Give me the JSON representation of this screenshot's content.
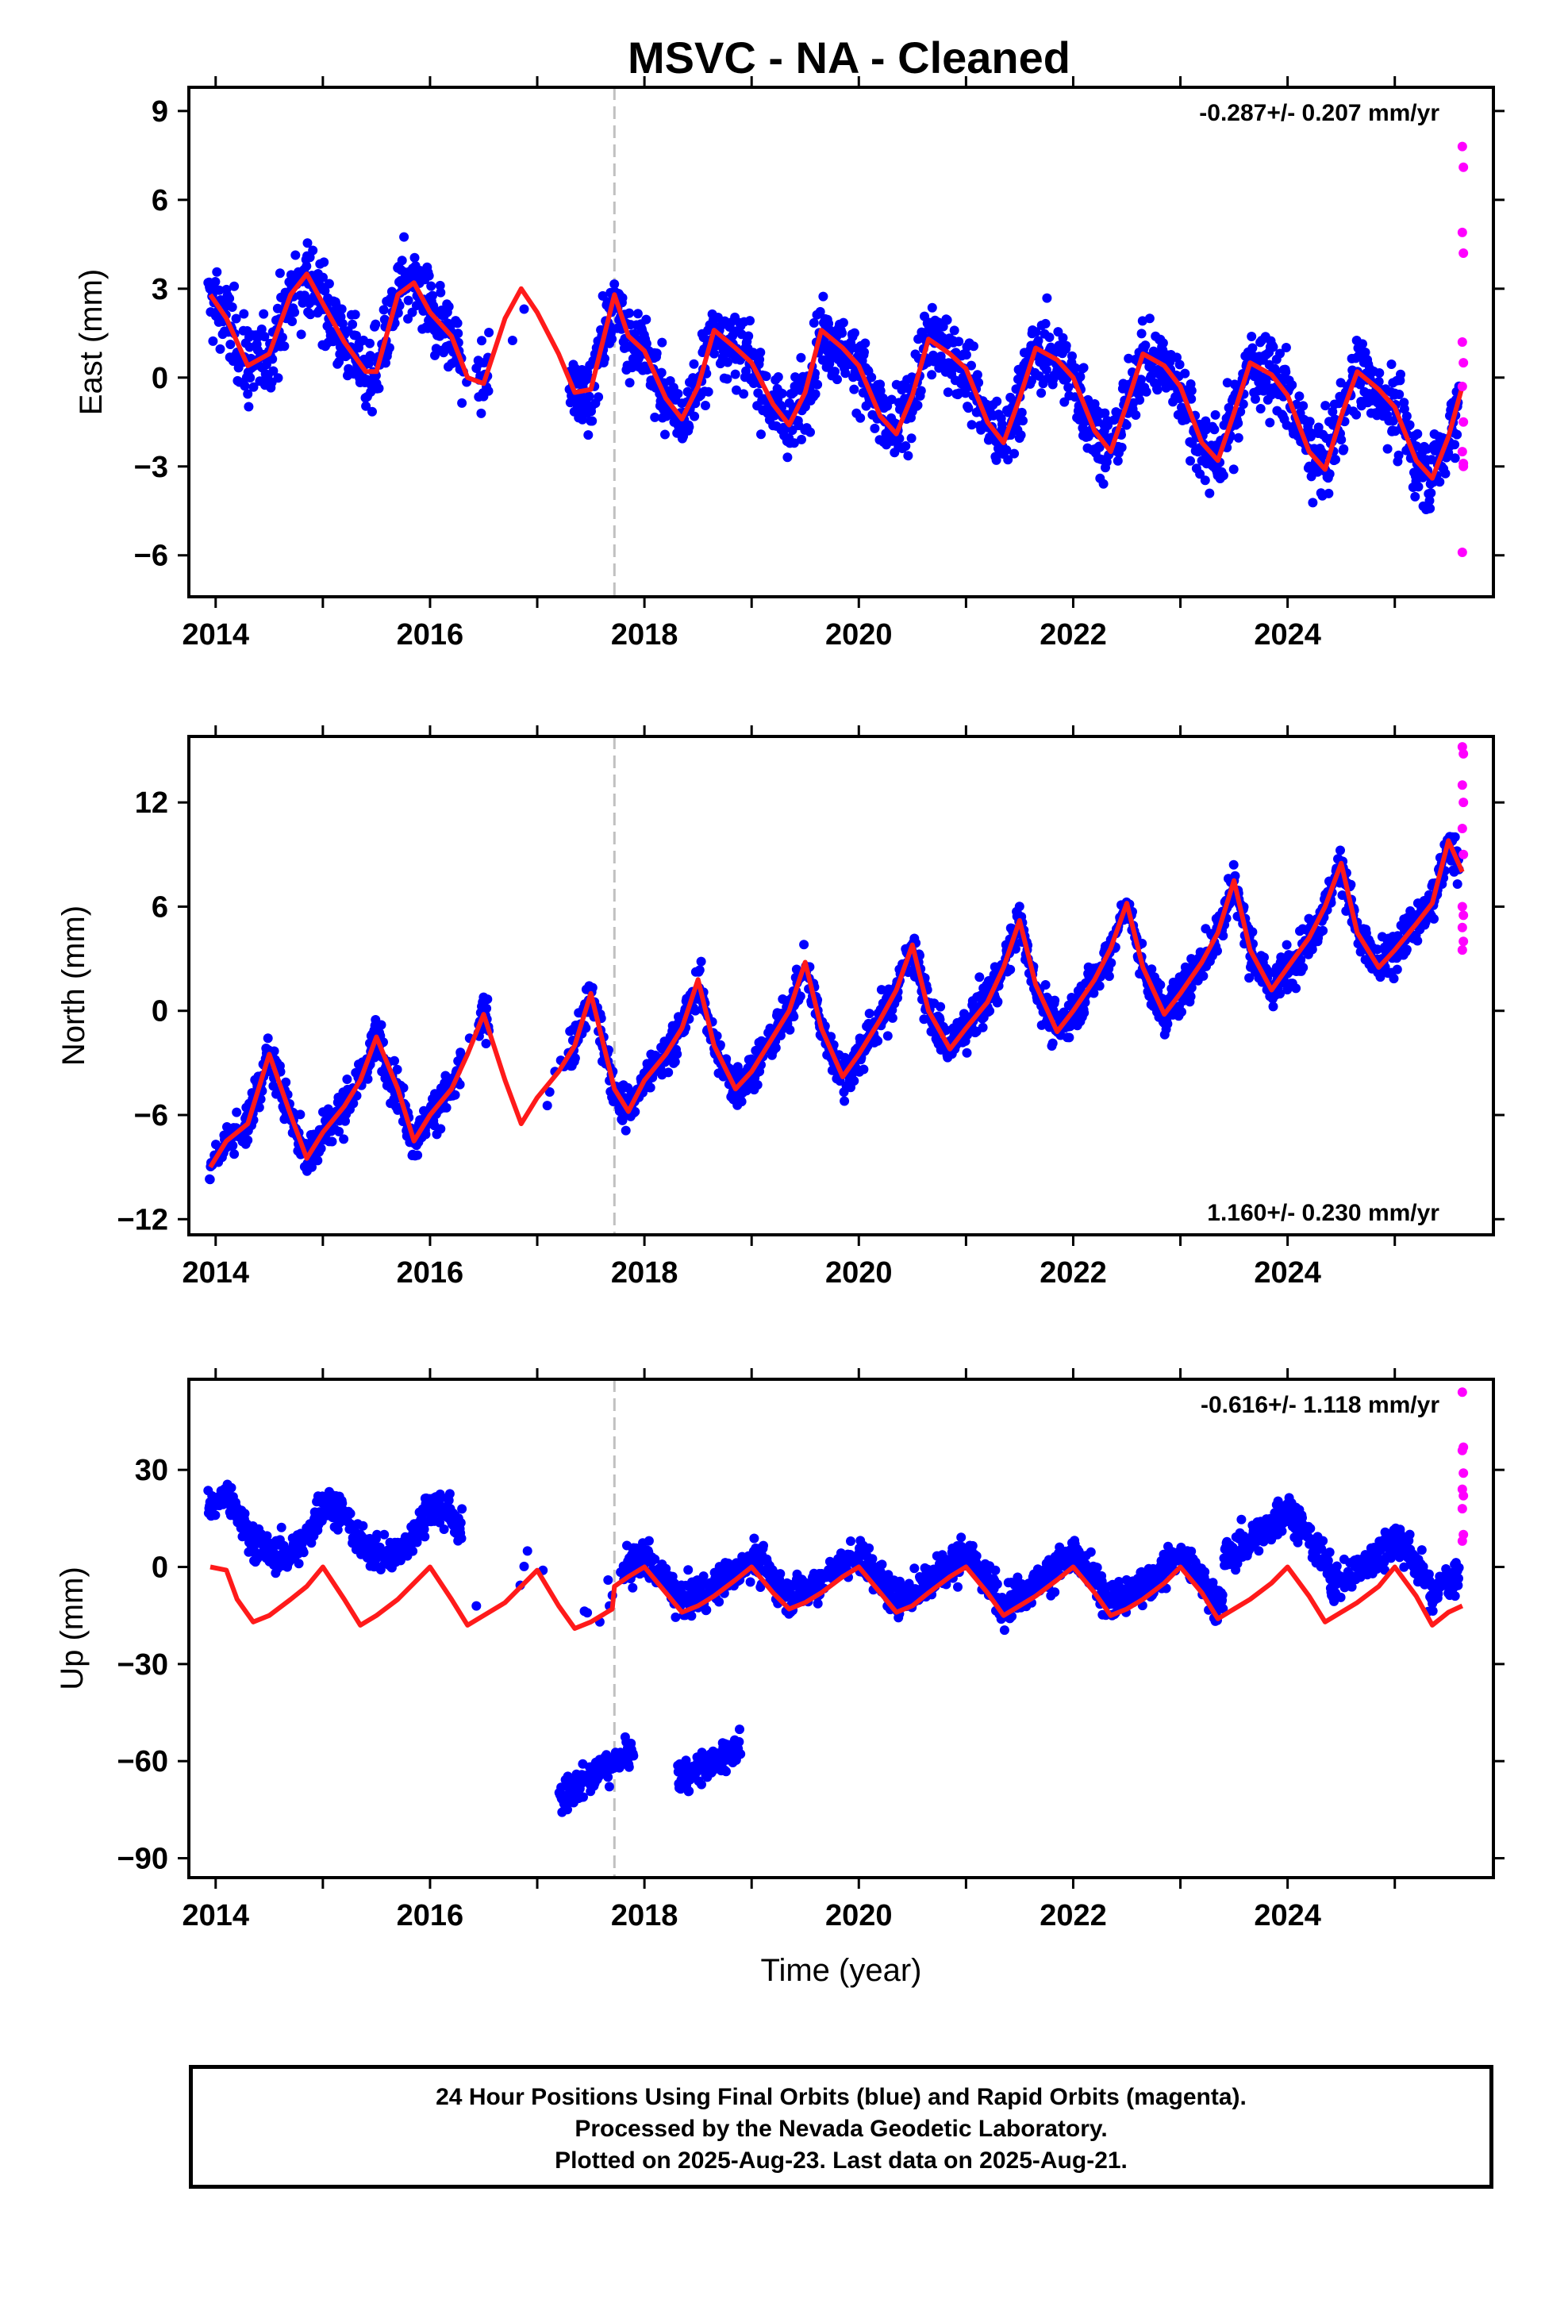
{
  "title": "MSVC  - NA - Cleaned",
  "x_label": "Time (year)",
  "colors": {
    "final": "#0000ff",
    "rapid": "#ff00ff",
    "model": "#ff1a1a",
    "event_line": "#c0c0c0"
  },
  "footer": {
    "line1": "24 Hour Positions Using Final Orbits (blue) and Rapid Orbits (magenta).",
    "line2": "Processed by the Nevada Geodetic Laboratory.",
    "line3": "Plotted on 2025-Aug-23. Last data on 2025-Aug-21."
  },
  "chart_data": [
    {
      "type": "scatter",
      "ylabel": "East (mm)",
      "rate": "-0.287+/- 0.207 mm/yr",
      "rate_position": "top-right",
      "xlim": [
        2013.75,
        2025.92
      ],
      "ylim": [
        -7.4,
        9.8
      ],
      "xticks": [
        2014,
        2016,
        2018,
        2020,
        2022,
        2024
      ],
      "yticks": [
        -6,
        -3,
        0,
        3,
        6,
        9
      ],
      "event_line_x": 2017.72,
      "series": [
        {
          "kind": "model",
          "x": [
            2013.95,
            2014.1,
            2014.3,
            2014.5,
            2014.7,
            2014.85,
            2015.0,
            2015.2,
            2015.4,
            2015.5,
            2015.7,
            2015.85,
            2016.0,
            2016.2,
            2016.35,
            2016.5,
            2016.7,
            2016.85,
            2017.0,
            2017.2,
            2017.35,
            2017.5,
            2017.72,
            2017.85,
            2018.0,
            2018.2,
            2018.35,
            2018.5,
            2018.65,
            2018.85,
            2019.0,
            2019.2,
            2019.35,
            2019.5,
            2019.65,
            2019.85,
            2020.0,
            2020.2,
            2020.35,
            2020.5,
            2020.65,
            2020.85,
            2021.0,
            2021.2,
            2021.35,
            2021.5,
            2021.65,
            2021.85,
            2022.0,
            2022.2,
            2022.35,
            2022.5,
            2022.65,
            2022.85,
            2023.0,
            2023.2,
            2023.35,
            2023.5,
            2023.65,
            2023.85,
            2024.0,
            2024.2,
            2024.35,
            2024.5,
            2024.65,
            2024.85,
            2025.0,
            2025.2,
            2025.35,
            2025.5,
            2025.63
          ],
          "y": [
            2.8,
            2.0,
            0.4,
            0.8,
            2.8,
            3.5,
            2.5,
            1.2,
            0.2,
            0.2,
            2.8,
            3.2,
            2.2,
            1.4,
            0.0,
            -0.2,
            2.0,
            3.0,
            2.2,
            0.8,
            -0.5,
            -0.4,
            2.8,
            1.4,
            0.9,
            -0.7,
            -1.4,
            -0.3,
            1.6,
            1.0,
            0.5,
            -0.9,
            -1.6,
            -0.5,
            1.6,
            1.0,
            0.4,
            -1.3,
            -1.9,
            -0.6,
            1.3,
            0.8,
            0.3,
            -1.5,
            -2.2,
            -0.7,
            1.0,
            0.6,
            0.0,
            -1.8,
            -2.5,
            -0.9,
            0.8,
            0.4,
            -0.3,
            -2.2,
            -2.8,
            -1.2,
            0.5,
            0.1,
            -0.6,
            -2.5,
            -3.1,
            -1.3,
            0.2,
            -0.4,
            -1.0,
            -2.8,
            -3.4,
            -2.0,
            -0.3
          ]
        },
        {
          "kind": "rapid",
          "x": [
            2025.63,
            2025.64,
            2025.63,
            2025.64,
            2025.63,
            2025.64,
            2025.63,
            2025.64,
            2025.63,
            2025.64,
            2025.63,
            2025.64
          ],
          "y": [
            7.8,
            7.1,
            4.9,
            4.2,
            1.2,
            0.5,
            -0.3,
            -1.5,
            -2.5,
            -3.0,
            -5.9,
            -2.9
          ]
        }
      ],
      "final_scatter_note_count": 0
    },
    {
      "type": "scatter",
      "ylabel": "North (mm)",
      "rate": "1.160+/- 0.230 mm/yr",
      "rate_position": "bottom-right",
      "xlim": [
        2013.75,
        2025.92
      ],
      "ylim": [
        -12.9,
        15.8
      ],
      "xticks": [
        2014,
        2016,
        2018,
        2020,
        2022,
        2024
      ],
      "yticks": [
        -12,
        -6,
        0,
        6,
        12
      ],
      "event_line_x": 2017.72,
      "series": [
        {
          "kind": "model",
          "x": [
            2013.95,
            2014.1,
            2014.3,
            2014.5,
            2014.7,
            2014.85,
            2015.0,
            2015.2,
            2015.35,
            2015.5,
            2015.7,
            2015.85,
            2016.0,
            2016.2,
            2016.35,
            2016.5,
            2016.7,
            2016.85,
            2017.0,
            2017.2,
            2017.35,
            2017.5,
            2017.72,
            2017.85,
            2018.0,
            2018.2,
            2018.35,
            2018.5,
            2018.65,
            2018.85,
            2019.0,
            2019.2,
            2019.35,
            2019.5,
            2019.65,
            2019.85,
            2020.0,
            2020.2,
            2020.35,
            2020.5,
            2020.65,
            2020.85,
            2021.0,
            2021.2,
            2021.35,
            2021.5,
            2021.65,
            2021.85,
            2022.0,
            2022.2,
            2022.35,
            2022.5,
            2022.65,
            2022.85,
            2023.0,
            2023.2,
            2023.35,
            2023.5,
            2023.65,
            2023.85,
            2024.0,
            2024.2,
            2024.35,
            2024.5,
            2024.65,
            2024.85,
            2025.0,
            2025.2,
            2025.35,
            2025.5,
            2025.63
          ],
          "y": [
            -9.0,
            -7.5,
            -6.5,
            -2.5,
            -6.0,
            -8.5,
            -7.0,
            -5.5,
            -4.0,
            -1.5,
            -4.5,
            -7.5,
            -6.0,
            -4.5,
            -2.5,
            -0.2,
            -4.0,
            -6.5,
            -5.0,
            -3.5,
            -2.0,
            1.0,
            -4.5,
            -5.8,
            -4.0,
            -2.5,
            -1.0,
            1.8,
            -2.0,
            -4.5,
            -3.5,
            -1.5,
            0.0,
            2.8,
            -1.0,
            -3.8,
            -2.5,
            -0.5,
            1.2,
            3.8,
            0.0,
            -2.2,
            -1.0,
            0.5,
            2.5,
            5.2,
            1.5,
            -1.2,
            0.0,
            1.8,
            3.6,
            6.2,
            2.5,
            -0.2,
            1.0,
            2.8,
            4.5,
            7.5,
            3.5,
            1.2,
            2.5,
            4.2,
            6.0,
            8.5,
            4.5,
            2.5,
            3.5,
            5.0,
            6.2,
            9.8,
            8.0
          ]
        },
        {
          "kind": "rapid",
          "x": [
            2025.63,
            2025.64,
            2025.63,
            2025.64,
            2025.63,
            2025.64,
            2025.63,
            2025.64,
            2025.63,
            2025.64,
            2025.63
          ],
          "y": [
            15.2,
            14.8,
            13.0,
            12.0,
            10.5,
            9.0,
            6.0,
            5.5,
            4.8,
            4.0,
            3.5
          ]
        }
      ]
    },
    {
      "type": "scatter",
      "ylabel": "Up (mm)",
      "rate": "-0.616+/- 1.118 mm/yr",
      "rate_position": "top-right",
      "xlim": [
        2013.75,
        2025.92
      ],
      "ylim": [
        -96,
        58
      ],
      "xticks": [
        2014,
        2016,
        2018,
        2020,
        2022,
        2024
      ],
      "yticks": [
        -90,
        -60,
        -30,
        0,
        30
      ],
      "event_line_x": 2017.72,
      "series": [
        {
          "kind": "model",
          "x": [
            2013.95,
            2014.1,
            2014.2,
            2014.35,
            2014.5,
            2014.7,
            2014.85,
            2015.0,
            2015.2,
            2015.35,
            2015.5,
            2015.7,
            2015.85,
            2016.0,
            2016.2,
            2016.35,
            2016.5,
            2016.7,
            2016.85,
            2017.0,
            2017.2,
            2017.35,
            2017.5,
            2017.7,
            2017.72,
            2017.85,
            2018.0,
            2018.2,
            2018.35,
            2018.5,
            2018.65,
            2018.85,
            2019.0,
            2019.2,
            2019.35,
            2019.5,
            2019.65,
            2019.85,
            2020.0,
            2020.2,
            2020.35,
            2020.5,
            2020.65,
            2020.85,
            2021.0,
            2021.2,
            2021.35,
            2021.5,
            2021.65,
            2021.85,
            2022.0,
            2022.2,
            2022.35,
            2022.5,
            2022.65,
            2022.85,
            2023.0,
            2023.2,
            2023.35,
            2023.5,
            2023.65,
            2023.85,
            2024.0,
            2024.2,
            2024.35,
            2024.5,
            2024.65,
            2024.85,
            2025.0,
            2025.2,
            2025.35,
            2025.5,
            2025.63
          ],
          "y": [
            0,
            -1,
            -10,
            -17,
            -15,
            -10,
            -6,
            0,
            -10,
            -18,
            -15,
            -10,
            -5,
            0,
            -10,
            -18,
            -15,
            -11,
            -6,
            -1,
            -12,
            -19,
            -17,
            -13,
            -6,
            -3,
            0,
            -8,
            -14,
            -12,
            -9,
            -4,
            0,
            -8,
            -13,
            -11,
            -8,
            -3,
            0,
            -8,
            -14,
            -12,
            -8,
            -3,
            0,
            -8,
            -15,
            -12,
            -9,
            -4,
            0,
            -8,
            -15,
            -13,
            -10,
            -5,
            0,
            -8,
            -16,
            -13,
            -10,
            -5,
            0,
            -9,
            -17,
            -14,
            -11,
            -6,
            0,
            -9,
            -18,
            -14,
            -12
          ]
        },
        {
          "kind": "rapid",
          "x": [
            2025.63,
            2025.64,
            2025.63,
            2025.64,
            2025.63,
            2025.64,
            2025.63,
            2025.64,
            2025.63
          ],
          "y": [
            54,
            37,
            36,
            29,
            24,
            22,
            18,
            10,
            8
          ]
        }
      ]
    }
  ]
}
